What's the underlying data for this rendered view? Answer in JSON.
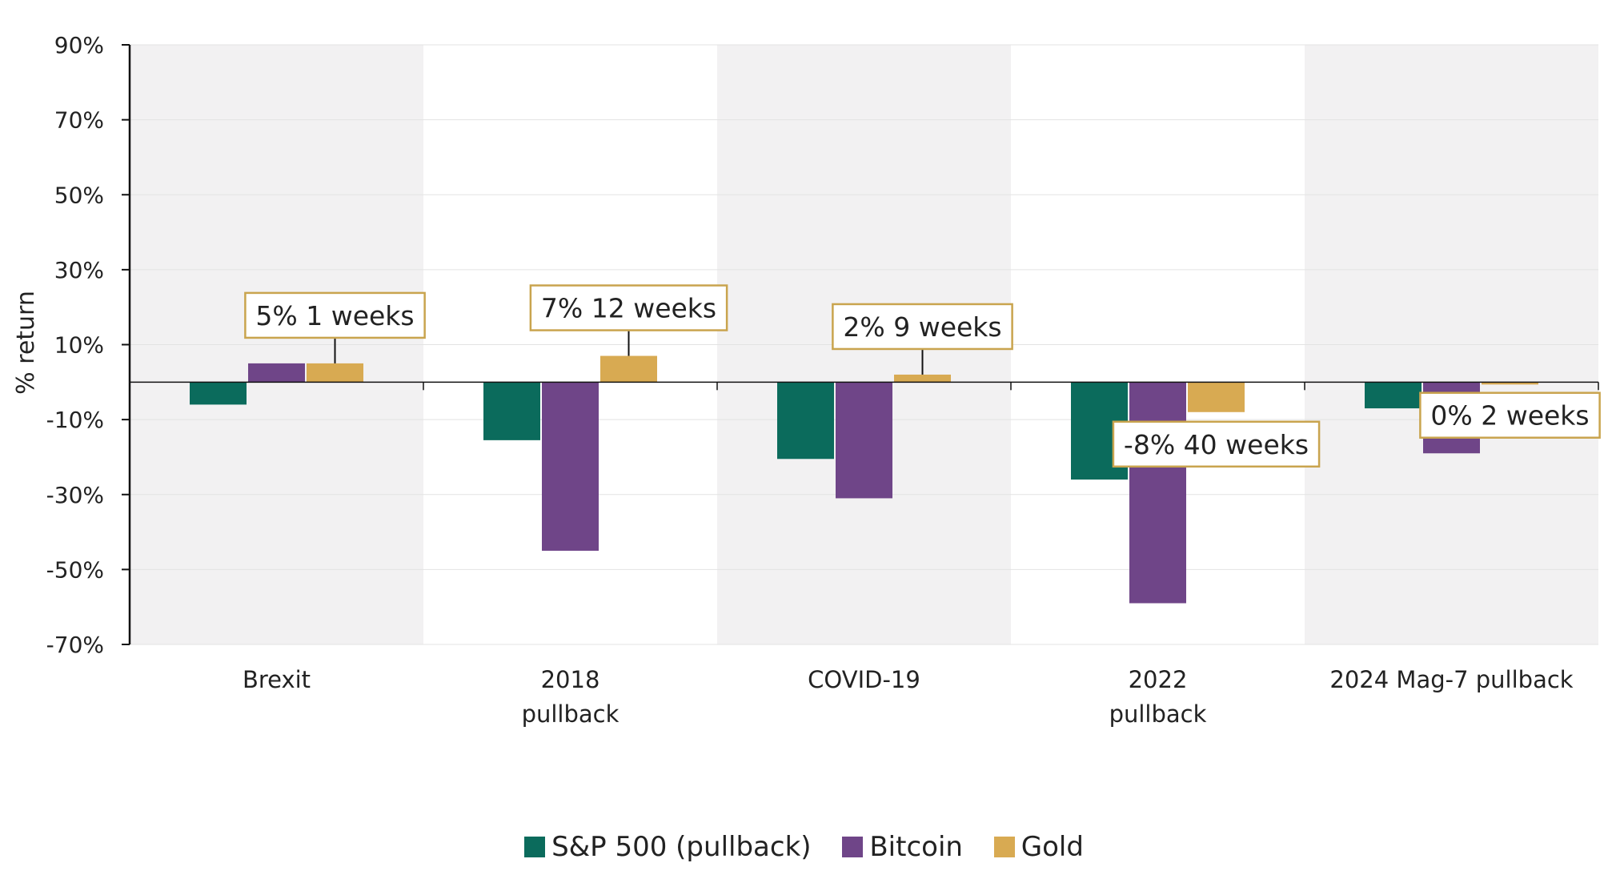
{
  "chart_data": {
    "type": "bar",
    "ylabel": "% return",
    "ylim": [
      -70,
      90
    ],
    "yticks": [
      90,
      70,
      50,
      30,
      10,
      -10,
      -30,
      -50,
      -70
    ],
    "ytick_labels": [
      "90%",
      "70%",
      "50%",
      "30%",
      "10%",
      "-10%",
      "-30%",
      "-50%",
      "-70%"
    ],
    "categories": [
      {
        "lines": [
          "Brexit"
        ],
        "shaded": true
      },
      {
        "lines": [
          "2018",
          "pullback"
        ],
        "shaded": false
      },
      {
        "lines": [
          "COVID-19"
        ],
        "shaded": true
      },
      {
        "lines": [
          "2022",
          "pullback"
        ],
        "shaded": false
      },
      {
        "lines": [
          "2024 Mag-7 pullback"
        ],
        "shaded": true
      }
    ],
    "series": [
      {
        "name": "S&P 500 (pullback)",
        "color": "#0b6b5c",
        "values": [
          -6,
          -15.5,
          -20.5,
          -26,
          -7
        ]
      },
      {
        "name": "Bitcoin",
        "color": "#6f4588",
        "values": [
          5,
          -45,
          -31,
          -59,
          -19
        ]
      },
      {
        "name": "Gold",
        "color": "#d8aa52",
        "values": [
          5,
          7,
          2,
          -8,
          -0.3
        ]
      }
    ],
    "annotations": [
      {
        "text": "5% 1 weeks",
        "category": 0,
        "series": 2
      },
      {
        "text": "7% 12 weeks",
        "category": 1,
        "series": 2
      },
      {
        "text": "2% 9 weeks",
        "category": 2,
        "series": 2
      },
      {
        "text": "-8% 40 weeks",
        "category": 3,
        "series": 2
      },
      {
        "text": "0% 2 weeks",
        "category": 4,
        "series": 2
      }
    ],
    "shade_color": "#f2f1f2",
    "annotation_border": "#c9a44e",
    "legend_position": "bottom"
  }
}
